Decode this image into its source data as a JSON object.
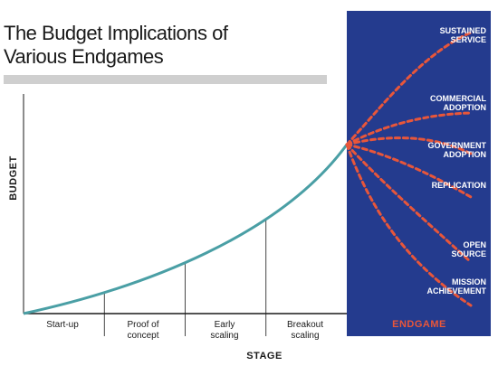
{
  "chart_data": {
    "type": "line",
    "title_lines": [
      "The Budget Implications of",
      "Various Endgames"
    ],
    "ylabel": "BUDGET",
    "xlabel": "STAGE",
    "stages": [
      [
        "Start-up"
      ],
      [
        "Proof of",
        "concept"
      ],
      [
        "Early",
        "scaling"
      ],
      [
        "Breakout",
        "scaling"
      ]
    ],
    "endgame_label": "ENDGAME",
    "endgames": [
      {
        "lines": [
          "SUSTAINED",
          "SERVICE"
        ]
      },
      {
        "lines": [
          "COMMERCIAL",
          "ADOPTION"
        ]
      },
      {
        "lines": [
          "GOVERNMENT",
          "ADOPTION"
        ]
      },
      {
        "lines": [
          "REPLICATION"
        ]
      },
      {
        "lines": [
          "OPEN",
          "SOURCE"
        ]
      },
      {
        "lines": [
          "MISSION",
          "ACHIEVEMENT"
        ]
      }
    ],
    "colors": {
      "curve": "#4a9fa5",
      "endgame_panel": "#243b8e",
      "dashed": "#e8563a",
      "title_bar": "#cfcfcf",
      "axis": "#1a1a1a"
    }
  }
}
